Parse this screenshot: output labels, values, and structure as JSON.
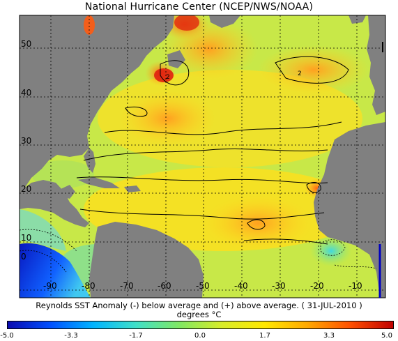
{
  "title": "National Hurricane Center (NCEP/NWS/NOAA)",
  "caption_line1": "Reynolds SST Anomaly (-) below average and (+) above average. ( 31-JUL-2010 )",
  "caption_line2": "degrees °C",
  "map": {
    "lat_labels": [
      "50",
      "40",
      "30",
      "20",
      "10",
      "0"
    ],
    "lon_labels": [
      "-90",
      "-80",
      "-70",
      "-60",
      "-50",
      "-40",
      "-30",
      "-20",
      "-10"
    ],
    "contour_labels": [
      "2",
      "2"
    ],
    "colors": {
      "land": "#808080",
      "grid": "#000000"
    }
  },
  "colorbar": {
    "ticks": [
      "-5.0",
      "-3.3",
      "-1.7",
      "0.0",
      "1.7",
      "3.3",
      "5.0"
    ],
    "min": -5.0,
    "max": 5.0,
    "colors": [
      "#0b0bb0",
      "#0050ff",
      "#00b4ff",
      "#40e0c8",
      "#7fe864",
      "#d8ec28",
      "#ffe800",
      "#ffa800",
      "#ff5000",
      "#c00000"
    ]
  }
}
